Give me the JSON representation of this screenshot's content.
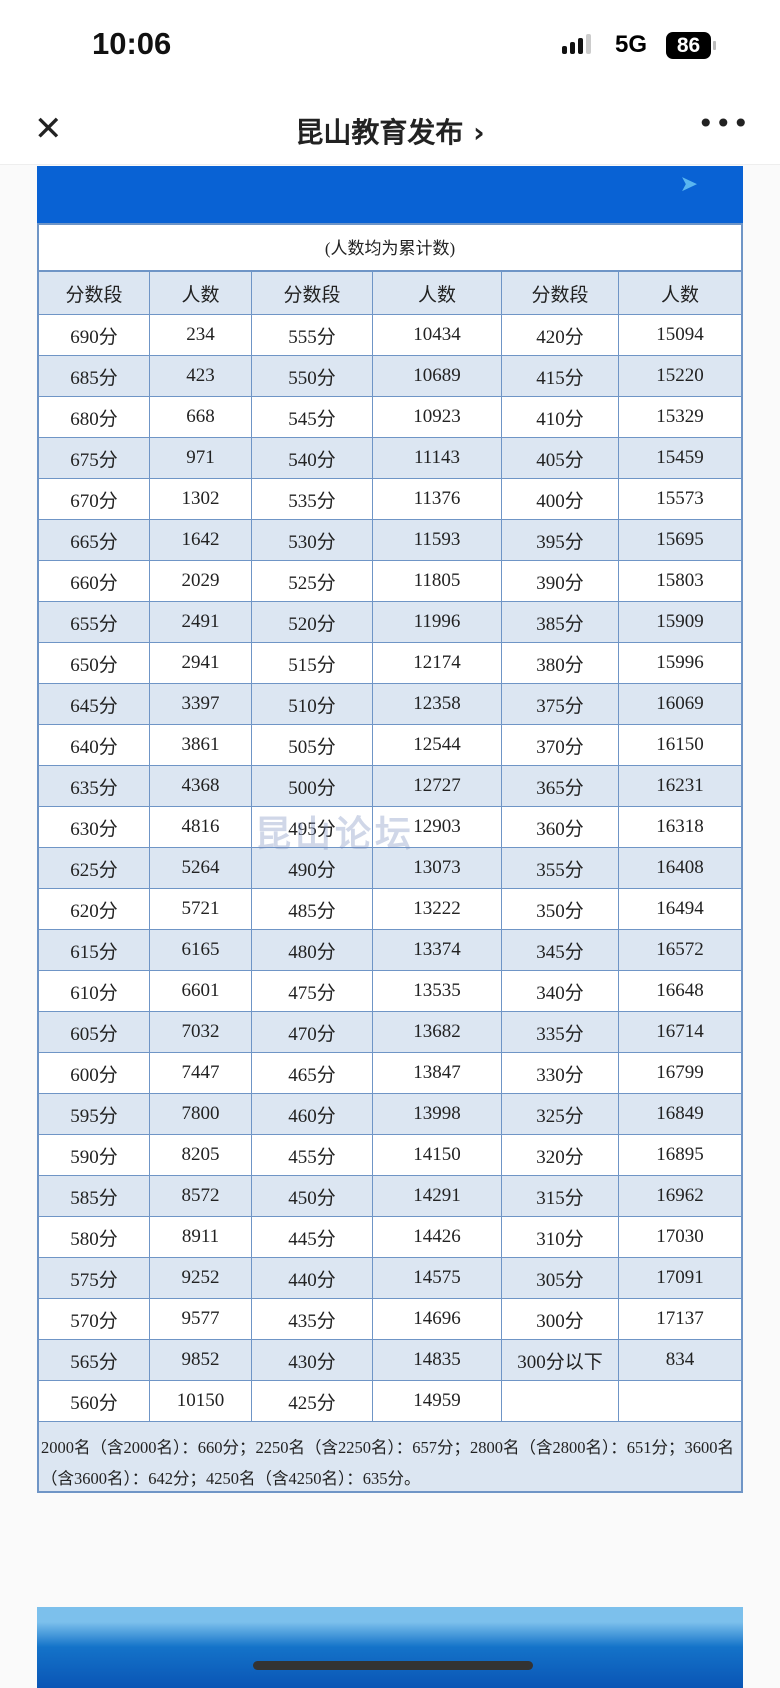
{
  "status_bar": {
    "time": "10:06",
    "network": "5G",
    "battery": "86"
  },
  "nav": {
    "title": "昆山教育发布 ›",
    "close_icon": "close-icon",
    "more_icon": "more-icon"
  },
  "table": {
    "note": "(人数均为累计数)",
    "headers": [
      "分数段",
      "人数",
      "分数段",
      "人数",
      "分数段",
      "人数"
    ],
    "rows": [
      [
        "690分",
        "234",
        "555分",
        "10434",
        "420分",
        "15094"
      ],
      [
        "685分",
        "423",
        "550分",
        "10689",
        "415分",
        "15220"
      ],
      [
        "680分",
        "668",
        "545分",
        "10923",
        "410分",
        "15329"
      ],
      [
        "675分",
        "971",
        "540分",
        "11143",
        "405分",
        "15459"
      ],
      [
        "670分",
        "1302",
        "535分",
        "11376",
        "400分",
        "15573"
      ],
      [
        "665分",
        "1642",
        "530分",
        "11593",
        "395分",
        "15695"
      ],
      [
        "660分",
        "2029",
        "525分",
        "11805",
        "390分",
        "15803"
      ],
      [
        "655分",
        "2491",
        "520分",
        "11996",
        "385分",
        "15909"
      ],
      [
        "650分",
        "2941",
        "515分",
        "12174",
        "380分",
        "15996"
      ],
      [
        "645分",
        "3397",
        "510分",
        "12358",
        "375分",
        "16069"
      ],
      [
        "640分",
        "3861",
        "505分",
        "12544",
        "370分",
        "16150"
      ],
      [
        "635分",
        "4368",
        "500分",
        "12727",
        "365分",
        "16231"
      ],
      [
        "630分",
        "4816",
        "495分",
        "12903",
        "360分",
        "16318"
      ],
      [
        "625分",
        "5264",
        "490分",
        "13073",
        "355分",
        "16408"
      ],
      [
        "620分",
        "5721",
        "485分",
        "13222",
        "350分",
        "16494"
      ],
      [
        "615分",
        "6165",
        "480分",
        "13374",
        "345分",
        "16572"
      ],
      [
        "610分",
        "6601",
        "475分",
        "13535",
        "340分",
        "16648"
      ],
      [
        "605分",
        "7032",
        "470分",
        "13682",
        "335分",
        "16714"
      ],
      [
        "600分",
        "7447",
        "465分",
        "13847",
        "330分",
        "16799"
      ],
      [
        "595分",
        "7800",
        "460分",
        "13998",
        "325分",
        "16849"
      ],
      [
        "590分",
        "8205",
        "455分",
        "14150",
        "320分",
        "16895"
      ],
      [
        "585分",
        "8572",
        "450分",
        "14291",
        "315分",
        "16962"
      ],
      [
        "580分",
        "8911",
        "445分",
        "14426",
        "310分",
        "17030"
      ],
      [
        "575分",
        "9252",
        "440分",
        "14575",
        "305分",
        "17091"
      ],
      [
        "570分",
        "9577",
        "435分",
        "14696",
        "300分",
        "17137"
      ],
      [
        "565分",
        "9852",
        "430分",
        "14835",
        "300分以下",
        "834"
      ],
      [
        "560分",
        "10150",
        "425分",
        "14959",
        "",
        ""
      ]
    ],
    "footnote": "2000名（含2000名）：660分；2250名（含2250名）：657分；2800名（含2800名）：651分；3600名（含3600名）：642分；4250名（含4250名）：635分。"
  },
  "watermark": "昆山论坛",
  "colors": {
    "banner": "#0962d4",
    "row_alt": "#dce6f2",
    "border": "#6f95c6"
  }
}
